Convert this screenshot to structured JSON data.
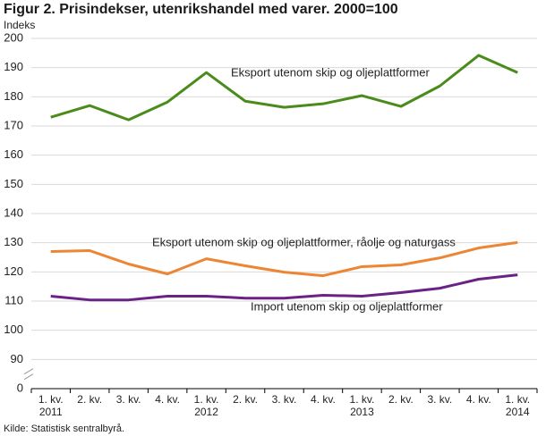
{
  "chart_data": {
    "type": "line",
    "title": "Figur 2. Prisindekser, utenrikshandel med varer. 2000=100",
    "y_label": "Indeks",
    "source": "Kilde: Statistisk sentralbyrå.",
    "categories": [
      "1. kv. 2011",
      "2. kv.",
      "3. kv.",
      "4. kv.",
      "1. kv. 2012",
      "2. kv.",
      "3. kv.",
      "4. kv.",
      "1. kv. 2013",
      "2. kv.",
      "3. kv.",
      "4. kv.",
      "1. kv. 2014"
    ],
    "series": [
      {
        "name": "Eksport utenom skip og oljeplattformer",
        "color": "#4a8c1c",
        "values": [
          173.0,
          177.0,
          172.1,
          178.2,
          188.3,
          178.5,
          176.4,
          177.6,
          180.4,
          176.7,
          183.7,
          194.2,
          188.3
        ]
      },
      {
        "name": "Eksport utenom skip og oljeplattformer, råolje og naturgass",
        "color": "#ec8634",
        "values": [
          127.0,
          127.3,
          122.7,
          119.3,
          124.5,
          122.1,
          119.9,
          118.7,
          121.8,
          122.4,
          124.8,
          128.2,
          130.1
        ]
      },
      {
        "name": "Import utenom skip og oljeplattformer",
        "color": "#6b2287",
        "values": [
          111.7,
          110.4,
          110.4,
          111.7,
          111.7,
          111.0,
          111.0,
          112.0,
          111.7,
          112.9,
          114.4,
          117.5,
          119.0
        ]
      }
    ],
    "ylim": [
      0,
      200
    ],
    "yticks": [
      0,
      90,
      100,
      110,
      120,
      130,
      140,
      150,
      160,
      170,
      180,
      190,
      200
    ],
    "y_axis_break": [
      0,
      90
    ],
    "grid": true
  }
}
